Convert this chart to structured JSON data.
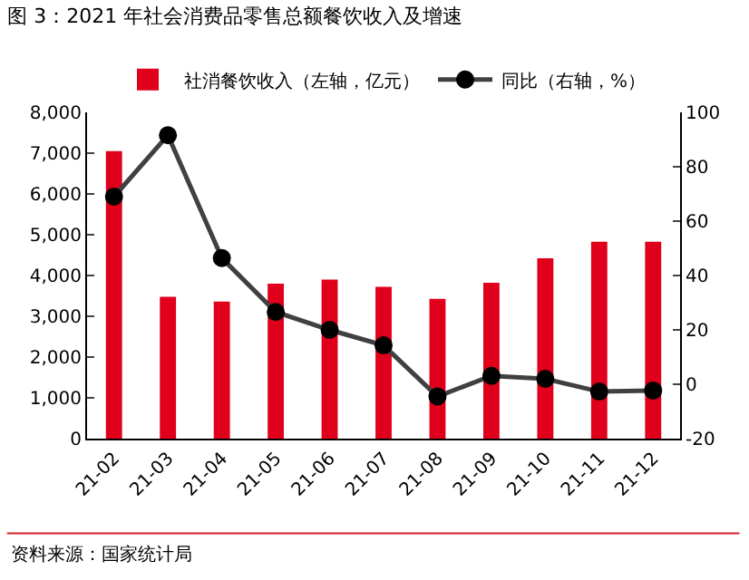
{
  "chart_data": {
    "type": "bar",
    "title": "图 3：2021 年社会消费品零售总额餐饮收入及增速",
    "categories": [
      "21-02",
      "21-03",
      "21-04",
      "21-05",
      "21-06",
      "21-07",
      "21-08",
      "21-09",
      "21-10",
      "21-11",
      "21-12"
    ],
    "series": [
      {
        "name": "社消餐饮收入（左轴，亿元）",
        "color": "#e0001b",
        "values": [
          7050,
          3480,
          3360,
          3800,
          3900,
          3720,
          3430,
          3820,
          4420,
          4830,
          4830
        ]
      },
      {
        "name": "同比（右轴，%）",
        "type": "line",
        "axis": "y2",
        "color": "#404040",
        "marker": "circle",
        "values": [
          69,
          91.6,
          46.4,
          26.6,
          20,
          14.3,
          -4.5,
          3.1,
          2,
          -2.7,
          -2.3
        ]
      }
    ],
    "ylim": [
      0,
      8000
    ],
    "yticks": [
      {
        "value": 0,
        "label": "0"
      },
      {
        "value": 1000,
        "label": "1,000"
      },
      {
        "value": 2000,
        "label": "2,000"
      },
      {
        "value": 3000,
        "label": "3,000"
      },
      {
        "value": 4000,
        "label": "4,000"
      },
      {
        "value": 5000,
        "label": "5,000"
      },
      {
        "value": 6000,
        "label": "6,000"
      },
      {
        "value": 7000,
        "label": "7,000"
      },
      {
        "value": 8000,
        "label": "8,000"
      }
    ],
    "y2lim": [
      -20,
      100
    ],
    "y2ticks": [
      -20,
      0,
      20,
      40,
      60,
      80,
      100
    ],
    "legend": "top",
    "grid": false,
    "annotations": [
      "资料来源：国家统计局"
    ]
  }
}
